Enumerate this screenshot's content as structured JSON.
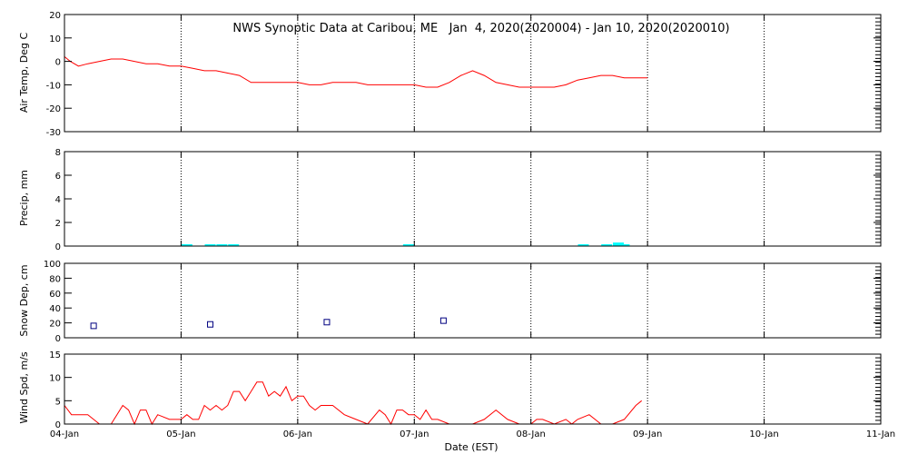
{
  "colors": {
    "background": "#ffffff",
    "axis": "#000000",
    "temp_line": "#ff0000",
    "precip_bar": "#00ffff",
    "snow_marker": "#000080",
    "wind_line": "#ff0000"
  },
  "chart_data": {
    "title": "NWS Synoptic Data at Caribou, ME   Jan  4, 2020(2020004) - Jan 10, 2020(2020010)",
    "xlabel": "Date (EST)",
    "x_range_days": [
      0,
      7
    ],
    "x_ticks": [
      {
        "day": 0,
        "label": "04-Jan"
      },
      {
        "day": 1,
        "label": "05-Jan"
      },
      {
        "day": 2,
        "label": "06-Jan"
      },
      {
        "day": 3,
        "label": "07-Jan"
      },
      {
        "day": 4,
        "label": "08-Jan"
      },
      {
        "day": 5,
        "label": "09-Jan"
      },
      {
        "day": 6,
        "label": "10-Jan"
      },
      {
        "day": 7,
        "label": "11-Jan"
      }
    ],
    "grid": "vertical dotted at each day",
    "panels": [
      {
        "id": "temp",
        "type": "line",
        "ylabel": "Air Temp, Deg C",
        "ylim": [
          -30,
          20
        ],
        "yticks": [
          20,
          10,
          0,
          -10,
          -20,
          -30
        ],
        "series": [
          {
            "x": [
              0,
              0.05,
              0.12,
              0.2,
              0.3,
              0.4,
              0.5,
              0.6,
              0.7,
              0.8,
              0.9,
              1.0,
              1.1,
              1.2,
              1.3,
              1.4,
              1.5,
              1.6,
              1.7,
              1.8,
              1.9,
              2.0,
              2.1,
              2.2,
              2.3,
              2.4,
              2.5,
              2.6,
              2.7,
              2.8,
              2.9,
              3.0,
              3.1,
              3.2,
              3.3,
              3.4,
              3.5,
              3.6,
              3.7,
              3.8,
              3.9,
              4.0,
              4.1,
              4.2,
              4.3,
              4.4,
              4.5,
              4.6,
              4.7,
              4.8,
              4.9,
              5.0
            ],
            "y": [
              2,
              0,
              -2,
              -1,
              0,
              1,
              1,
              0,
              -1,
              -1,
              -2,
              -2,
              -3,
              -4,
              -4,
              -5,
              -6,
              -9,
              -9,
              -9,
              -9,
              -9,
              -10,
              -10,
              -9,
              -9,
              -9,
              -10,
              -10,
              -10,
              -10,
              -10,
              -11,
              -11,
              -9,
              -6,
              -4,
              -6,
              -9,
              -10,
              -11,
              -11,
              -11,
              -11,
              -10,
              -8,
              -7,
              -6,
              -6,
              -7,
              -7,
              -7
            ]
          }
        ]
      },
      {
        "id": "precip",
        "type": "bar",
        "ylabel": "Precip, mm",
        "ylim": [
          0,
          8
        ],
        "yticks": [
          8,
          6,
          4,
          2,
          0
        ],
        "bars": [
          {
            "x": 1.05,
            "value": 0.1
          },
          {
            "x": 1.25,
            "value": 0.1
          },
          {
            "x": 1.35,
            "value": 0.1
          },
          {
            "x": 1.45,
            "value": 0.1
          },
          {
            "x": 2.95,
            "value": 0.1
          },
          {
            "x": 4.45,
            "value": 0.1
          },
          {
            "x": 4.65,
            "value": 0.1
          },
          {
            "x": 4.75,
            "value": 0.3
          },
          {
            "x": 4.8,
            "value": 0.1
          }
        ]
      },
      {
        "id": "snow",
        "type": "scatter",
        "ylabel": "Snow Dep, cm",
        "ylim": [
          0,
          100
        ],
        "yticks": [
          100,
          80,
          60,
          40,
          20,
          0
        ],
        "points": [
          {
            "x": 0.25,
            "y": 16
          },
          {
            "x": 1.25,
            "y": 18
          },
          {
            "x": 2.25,
            "y": 21
          },
          {
            "x": 3.25,
            "y": 23
          }
        ]
      },
      {
        "id": "wind",
        "type": "line",
        "ylabel": "Wind Spd, m/s",
        "ylim": [
          0,
          15
        ],
        "yticks": [
          15,
          10,
          5,
          0
        ],
        "series": [
          {
            "x": [
              0,
              0.06,
              0.12,
              0.2,
              0.3,
              0.4,
              0.5,
              0.55,
              0.6,
              0.65,
              0.7,
              0.75,
              0.8,
              0.9,
              1.0,
              1.05,
              1.1,
              1.15,
              1.2,
              1.25,
              1.3,
              1.35,
              1.4,
              1.45,
              1.5,
              1.55,
              1.6,
              1.65,
              1.7,
              1.75,
              1.8,
              1.85,
              1.9,
              1.95,
              2.0,
              2.05,
              2.1,
              2.15,
              2.2,
              2.3,
              2.4,
              2.5,
              2.6,
              2.7,
              2.75,
              2.8,
              2.85,
              2.9,
              2.95,
              3.0,
              3.05,
              3.1,
              3.15,
              3.2,
              3.3,
              3.4,
              3.5,
              3.6,
              3.7,
              3.8,
              3.9,
              4.0,
              4.05,
              4.1,
              4.2,
              4.3,
              4.35,
              4.4,
              4.5,
              4.6,
              4.7,
              4.8,
              4.9,
              4.95
            ],
            "y": [
              4,
              2,
              2,
              2,
              0,
              0,
              4,
              3,
              0,
              3,
              3,
              0,
              2,
              1,
              1,
              2,
              1,
              1,
              4,
              3,
              4,
              3,
              4,
              7,
              7,
              5,
              7,
              9,
              9,
              6,
              7,
              6,
              8,
              5,
              6,
              6,
              4,
              3,
              4,
              4,
              2,
              1,
              0,
              3,
              2,
              0,
              3,
              3,
              2,
              2,
              1,
              3,
              1,
              1,
              0,
              0,
              0,
              1,
              3,
              1,
              0,
              0,
              1,
              1,
              0,
              1,
              0,
              1,
              2,
              0,
              0,
              1,
              4,
              5
            ]
          }
        ]
      }
    ]
  }
}
